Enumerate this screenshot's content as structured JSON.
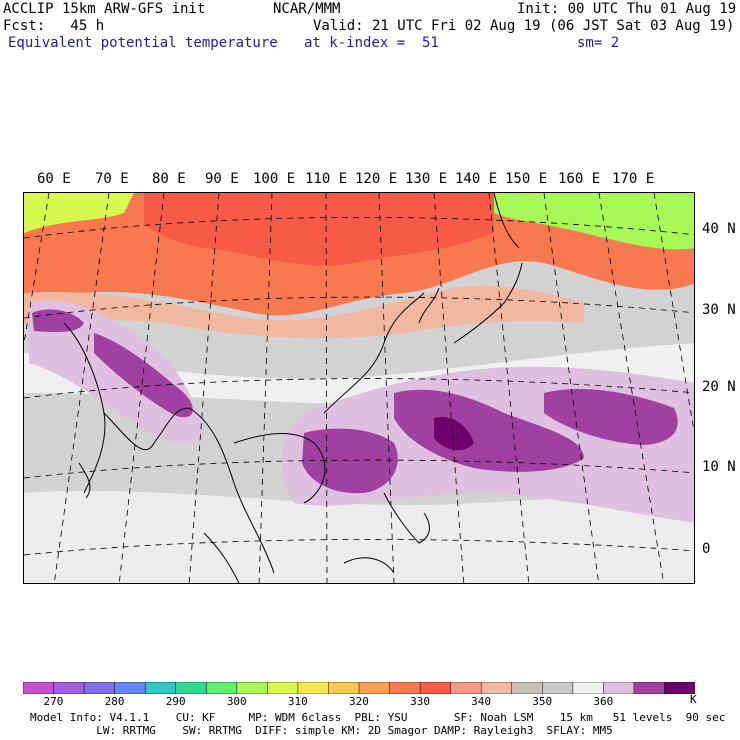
{
  "header": {
    "model": "ACCLIP 15km ARW-GFS init",
    "center": "NCAR/MMM",
    "init": "Init: 00 UTC Thu 01 Aug 19",
    "fcst": "Fcst:   45 h",
    "valid": "Valid: 21 UTC Fri 02 Aug 19 (06 JST Sat 03 Aug 19)",
    "field": "Equivalent potential temperature",
    "level": "at k-index =  51",
    "smooth": "sm= 2"
  },
  "map": {
    "lon_labels": [
      "60 E",
      "70 E",
      "80 E",
      "90 E",
      "100 E",
      "110 E",
      "120 E",
      "130 E",
      "140 E",
      "150 E",
      "160 E",
      "170 E"
    ],
    "lat_labels": [
      "40 N",
      "30 N",
      "20 N",
      "10 N",
      "0"
    ]
  },
  "colorbar": {
    "unit": "K",
    "colors": [
      "#c850d0",
      "#a060e0",
      "#8070e8",
      "#6088f0",
      "#30c8c8",
      "#30d898",
      "#60f070",
      "#a8f858",
      "#d8f850",
      "#f8e850",
      "#f8c850",
      "#f8a050",
      "#f87850",
      "#f85a48",
      "#f89888",
      "#f0b8a0",
      "#c8c0b8",
      "#c8c8c8",
      "#f0f0f0",
      "#e0c0e0",
      "#a040a0",
      "#6e006e"
    ],
    "tick_labels": [
      "270",
      "280",
      "290",
      "300",
      "310",
      "320",
      "330",
      "340",
      "350",
      "360"
    ]
  },
  "footer": {
    "line1": "Model Info: V4.1.1    CU: KF     MP: WDM 6class  PBL: YSU       SF: Noah LSM    15 km   51 levels  90 sec",
    "line2": "          LW: RRTMG    SW: RRTMG  DIFF: simple KM: 2D Smagor DAMP: Rayleigh3  SFLAY: MM5"
  }
}
